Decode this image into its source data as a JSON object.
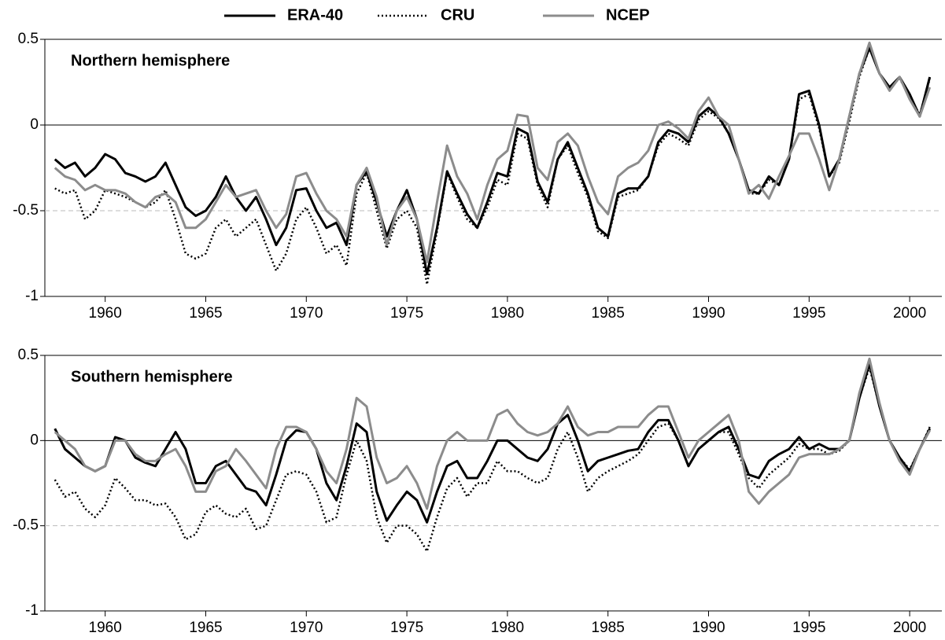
{
  "chart_data": [
    {
      "type": "line",
      "title": "Northern hemisphere",
      "x": [
        1957.5,
        1958,
        1958.5,
        1959,
        1959.5,
        1960,
        1960.5,
        1961,
        1961.5,
        1962,
        1962.5,
        1963,
        1963.5,
        1964,
        1964.5,
        1965,
        1965.5,
        1966,
        1966.5,
        1967,
        1967.5,
        1968,
        1968.5,
        1969,
        1969.5,
        1970,
        1970.5,
        1971,
        1971.5,
        1972,
        1972.5,
        1973,
        1973.5,
        1974,
        1974.5,
        1975,
        1975.5,
        1976,
        1976.5,
        1977,
        1977.5,
        1978,
        1978.5,
        1979,
        1979.5,
        1980,
        1980.5,
        1981,
        1981.5,
        1982,
        1982.5,
        1983,
        1983.5,
        1984,
        1984.5,
        1985,
        1985.5,
        1986,
        1986.5,
        1987,
        1987.5,
        1988,
        1988.5,
        1989,
        1989.5,
        1990,
        1990.5,
        1991,
        1991.5,
        1992,
        1992.5,
        1993,
        1993.5,
        1994,
        1994.5,
        1995,
        1995.5,
        1996,
        1996.5,
        1997,
        1997.5,
        1998,
        1998.5,
        1999,
        1999.5,
        2000,
        2000.5,
        2001
      ],
      "series": [
        {
          "name": "ERA-40",
          "color": "#000000",
          "dash": "solid",
          "values": [
            -0.2,
            -0.25,
            -0.22,
            -0.3,
            -0.25,
            -0.17,
            -0.2,
            -0.28,
            -0.3,
            -0.33,
            -0.3,
            -0.22,
            -0.35,
            -0.48,
            -0.53,
            -0.5,
            -0.42,
            -0.3,
            -0.42,
            -0.5,
            -0.42,
            -0.55,
            -0.7,
            -0.6,
            -0.38,
            -0.37,
            -0.5,
            -0.6,
            -0.57,
            -0.7,
            -0.35,
            -0.27,
            -0.45,
            -0.65,
            -0.5,
            -0.38,
            -0.55,
            -0.87,
            -0.6,
            -0.27,
            -0.4,
            -0.52,
            -0.6,
            -0.45,
            -0.28,
            -0.3,
            -0.02,
            -0.05,
            -0.33,
            -0.45,
            -0.2,
            -0.1,
            -0.25,
            -0.4,
            -0.6,
            -0.65,
            -0.4,
            -0.37,
            -0.37,
            -0.3,
            -0.1,
            -0.03,
            -0.05,
            -0.1,
            0.05,
            0.1,
            0.05,
            -0.05,
            -0.2,
            -0.38,
            -0.4,
            -0.3,
            -0.35,
            -0.2,
            0.18,
            0.2,
            0,
            -0.3,
            -0.2,
            0.05,
            0.3,
            0.45,
            0.3,
            0.22,
            0.28,
            0.18,
            0.05,
            0.28
          ]
        },
        {
          "name": "CRU",
          "color": "#000000",
          "dash": "dotted",
          "values": [
            -0.37,
            -0.4,
            -0.38,
            -0.55,
            -0.5,
            -0.38,
            -0.4,
            -0.42,
            -0.45,
            -0.48,
            -0.45,
            -0.38,
            -0.55,
            -0.75,
            -0.78,
            -0.75,
            -0.6,
            -0.55,
            -0.65,
            -0.6,
            -0.55,
            -0.7,
            -0.85,
            -0.75,
            -0.55,
            -0.48,
            -0.6,
            -0.75,
            -0.7,
            -0.82,
            -0.4,
            -0.28,
            -0.5,
            -0.72,
            -0.55,
            -0.5,
            -0.6,
            -0.93,
            -0.62,
            -0.28,
            -0.42,
            -0.55,
            -0.6,
            -0.48,
            -0.32,
            -0.35,
            -0.05,
            -0.08,
            -0.35,
            -0.48,
            -0.2,
            -0.12,
            -0.28,
            -0.42,
            -0.62,
            -0.66,
            -0.42,
            -0.4,
            -0.38,
            -0.3,
            -0.12,
            -0.05,
            -0.08,
            -0.12,
            0.03,
            0.08,
            0.04,
            -0.05,
            -0.2,
            -0.4,
            -0.4,
            -0.32,
            -0.35,
            -0.2,
            0.15,
            0.18,
            -0.02,
            -0.3,
            -0.22,
            0.02,
            0.28,
            0.45,
            0.3,
            0.22,
            0.27,
            0.17,
            0.06,
            0.27
          ]
        },
        {
          "name": "NCEP",
          "color": "#8c8c8c",
          "dash": "solid",
          "values": [
            -0.25,
            -0.3,
            -0.32,
            -0.38,
            -0.35,
            -0.38,
            -0.38,
            -0.4,
            -0.45,
            -0.48,
            -0.42,
            -0.4,
            -0.45,
            -0.6,
            -0.6,
            -0.55,
            -0.45,
            -0.35,
            -0.42,
            -0.4,
            -0.38,
            -0.5,
            -0.6,
            -0.52,
            -0.3,
            -0.28,
            -0.4,
            -0.5,
            -0.55,
            -0.65,
            -0.35,
            -0.25,
            -0.42,
            -0.7,
            -0.5,
            -0.42,
            -0.55,
            -0.8,
            -0.45,
            -0.12,
            -0.3,
            -0.4,
            -0.55,
            -0.35,
            -0.2,
            -0.15,
            0.06,
            0.05,
            -0.25,
            -0.32,
            -0.1,
            -0.05,
            -0.12,
            -0.3,
            -0.45,
            -0.52,
            -0.3,
            -0.25,
            -0.22,
            -0.15,
            0,
            0.02,
            -0.02,
            -0.08,
            0.08,
            0.16,
            0.05,
            0,
            -0.2,
            -0.4,
            -0.35,
            -0.43,
            -0.3,
            -0.18,
            -0.05,
            -0.05,
            -0.2,
            -0.38,
            -0.2,
            0.05,
            0.3,
            0.48,
            0.3,
            0.2,
            0.28,
            0.15,
            0.05,
            0.22
          ]
        }
      ],
      "xlim": [
        1957,
        2001.6
      ],
      "xticks": [
        1960,
        1965,
        1970,
        1975,
        1980,
        1985,
        1990,
        1995,
        2000
      ],
      "ylim": [
        -1,
        0.5
      ],
      "yticks": [
        0.5,
        0,
        -0.5,
        -1
      ],
      "hlines": [
        {
          "value": 0,
          "style": "solid"
        },
        {
          "value": -0.5,
          "style": "dashed"
        }
      ]
    },
    {
      "type": "line",
      "title": "Southern hemisphere",
      "x": [
        1957.5,
        1958,
        1958.5,
        1959,
        1959.5,
        1960,
        1960.5,
        1961,
        1961.5,
        1962,
        1962.5,
        1963,
        1963.5,
        1964,
        1964.5,
        1965,
        1965.5,
        1966,
        1966.5,
        1967,
        1967.5,
        1968,
        1968.5,
        1969,
        1969.5,
        1970,
        1970.5,
        1971,
        1971.5,
        1972,
        1972.5,
        1973,
        1973.5,
        1974,
        1974.5,
        1975,
        1975.5,
        1976,
        1976.5,
        1977,
        1977.5,
        1978,
        1978.5,
        1979,
        1979.5,
        1980,
        1980.5,
        1981,
        1981.5,
        1982,
        1982.5,
        1983,
        1983.5,
        1984,
        1984.5,
        1985,
        1985.5,
        1986,
        1986.5,
        1987,
        1987.5,
        1988,
        1988.5,
        1989,
        1989.5,
        1990,
        1990.5,
        1991,
        1991.5,
        1992,
        1992.5,
        1993,
        1993.5,
        1994,
        1994.5,
        1995,
        1995.5,
        1996,
        1996.5,
        1997,
        1997.5,
        1998,
        1998.5,
        1999,
        1999.5,
        2000,
        2000.5,
        2001
      ],
      "series": [
        {
          "name": "ERA-40",
          "color": "#000000",
          "dash": "solid",
          "values": [
            0.07,
            -0.05,
            -0.1,
            -0.15,
            -0.18,
            -0.15,
            0.02,
            0,
            -0.1,
            -0.13,
            -0.15,
            -0.05,
            0.05,
            -0.05,
            -0.25,
            -0.25,
            -0.15,
            -0.12,
            -0.2,
            -0.28,
            -0.3,
            -0.38,
            -0.2,
            0,
            0.06,
            0.05,
            -0.05,
            -0.25,
            -0.35,
            -0.15,
            0.1,
            0.05,
            -0.3,
            -0.47,
            -0.38,
            -0.3,
            -0.35,
            -0.48,
            -0.3,
            -0.15,
            -0.12,
            -0.22,
            -0.22,
            -0.12,
            0,
            0,
            -0.05,
            -0.1,
            -0.12,
            -0.05,
            0.1,
            0.15,
            0,
            -0.18,
            -0.12,
            -0.1,
            -0.08,
            -0.06,
            -0.05,
            0.05,
            0.12,
            0.12,
            0,
            -0.15,
            -0.05,
            0,
            0.05,
            0.08,
            -0.05,
            -0.2,
            -0.22,
            -0.12,
            -0.08,
            -0.05,
            0.02,
            -0.05,
            -0.02,
            -0.05,
            -0.05,
            0,
            0.25,
            0.45,
            0.2,
            0,
            -0.1,
            -0.18,
            -0.05,
            0.07
          ]
        },
        {
          "name": "CRU",
          "color": "#000000",
          "dash": "dotted",
          "values": [
            -0.23,
            -0.33,
            -0.3,
            -0.4,
            -0.45,
            -0.38,
            -0.22,
            -0.28,
            -0.35,
            -0.35,
            -0.38,
            -0.37,
            -0.45,
            -0.58,
            -0.55,
            -0.42,
            -0.38,
            -0.43,
            -0.45,
            -0.4,
            -0.52,
            -0.5,
            -0.35,
            -0.2,
            -0.18,
            -0.2,
            -0.3,
            -0.48,
            -0.45,
            -0.2,
            0,
            -0.12,
            -0.45,
            -0.6,
            -0.5,
            -0.5,
            -0.55,
            -0.65,
            -0.45,
            -0.28,
            -0.22,
            -0.33,
            -0.25,
            -0.25,
            -0.12,
            -0.18,
            -0.18,
            -0.22,
            -0.25,
            -0.22,
            -0.05,
            0.05,
            -0.1,
            -0.3,
            -0.22,
            -0.18,
            -0.15,
            -0.12,
            -0.08,
            0,
            0.08,
            0.1,
            0,
            -0.15,
            -0.05,
            0,
            0.05,
            0.05,
            -0.08,
            -0.22,
            -0.28,
            -0.2,
            -0.15,
            -0.1,
            -0.02,
            -0.05,
            -0.05,
            -0.08,
            -0.06,
            0,
            0.25,
            0.43,
            0.2,
            0,
            -0.1,
            -0.17,
            -0.05,
            0.08
          ]
        },
        {
          "name": "NCEP",
          "color": "#8c8c8c",
          "dash": "solid",
          "values": [
            0.05,
            0,
            -0.05,
            -0.15,
            -0.18,
            -0.15,
            0,
            0,
            -0.08,
            -0.12,
            -0.12,
            -0.08,
            -0.05,
            -0.15,
            -0.3,
            -0.3,
            -0.18,
            -0.15,
            -0.05,
            -0.12,
            -0.2,
            -0.28,
            -0.05,
            0.08,
            0.08,
            0.05,
            -0.05,
            -0.18,
            -0.25,
            -0.05,
            0.25,
            0.2,
            -0.1,
            -0.25,
            -0.22,
            -0.15,
            -0.25,
            -0.4,
            -0.15,
            0,
            0.05,
            0,
            0,
            0,
            0.15,
            0.18,
            0.1,
            0.05,
            0.03,
            0.05,
            0.1,
            0.2,
            0.08,
            0.03,
            0.05,
            0.05,
            0.08,
            0.08,
            0.08,
            0.15,
            0.2,
            0.2,
            0.05,
            -0.1,
            0,
            0.05,
            0.1,
            0.15,
            0,
            -0.3,
            -0.37,
            -0.3,
            -0.25,
            -0.2,
            -0.1,
            -0.08,
            -0.08,
            -0.08,
            -0.05,
            0,
            0.28,
            0.48,
            0.22,
            0,
            -0.12,
            -0.2,
            -0.05,
            0.06
          ]
        }
      ],
      "xlim": [
        1957,
        2001.6
      ],
      "xticks": [
        1960,
        1965,
        1970,
        1975,
        1980,
        1985,
        1990,
        1995,
        2000
      ],
      "ylim": [
        -1,
        0.5
      ],
      "yticks": [
        0.5,
        0,
        -0.5,
        -1
      ],
      "hlines": [
        {
          "value": 0,
          "style": "solid"
        },
        {
          "value": -0.5,
          "style": "dashed"
        }
      ]
    }
  ]
}
